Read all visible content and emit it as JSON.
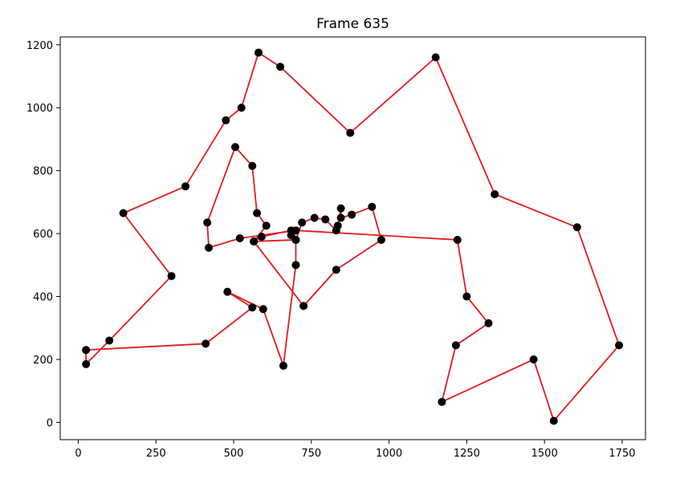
{
  "chart_data": {
    "type": "line",
    "title": "Frame 635",
    "xlabel": "",
    "ylabel": "",
    "xlim": [
      -58,
      1825
    ],
    "ylim": [
      -55,
      1225
    ],
    "xticks": [
      0,
      250,
      500,
      750,
      1000,
      1250,
      1500,
      1750
    ],
    "yticks": [
      0,
      200,
      400,
      600,
      800,
      1000,
      1200
    ],
    "xtick_labels": [
      "0",
      "250",
      "500",
      "750",
      "1000",
      "1250",
      "1500",
      "1750"
    ],
    "ytick_labels": [
      "0",
      "200",
      "400",
      "600",
      "800",
      "1000",
      "1200"
    ],
    "grid": false,
    "line_color": "#e31a1c",
    "marker_color": "#000000",
    "points": [
      [
        580,
        1175
      ],
      [
        650,
        1130
      ],
      [
        875,
        920
      ],
      [
        1150,
        1160
      ],
      [
        1340,
        725
      ],
      [
        1605,
        620
      ],
      [
        1740,
        245
      ],
      [
        1530,
        5
      ],
      [
        1465,
        200
      ],
      [
        1170,
        65
      ],
      [
        1215,
        245
      ],
      [
        1320,
        315
      ],
      [
        1250,
        400
      ],
      [
        1220,
        580
      ],
      [
        700,
        610
      ],
      [
        520,
        585
      ],
      [
        420,
        555
      ],
      [
        415,
        635
      ],
      [
        505,
        875
      ],
      [
        560,
        815
      ],
      [
        575,
        665
      ],
      [
        605,
        625
      ],
      [
        565,
        575
      ],
      [
        725,
        370
      ],
      [
        830,
        485
      ],
      [
        975,
        580
      ],
      [
        945,
        685
      ],
      [
        880,
        660
      ],
      [
        845,
        650
      ],
      [
        845,
        680
      ],
      [
        835,
        625
      ],
      [
        830,
        610
      ],
      [
        795,
        645
      ],
      [
        760,
        650
      ],
      [
        720,
        635
      ],
      [
        700,
        580
      ],
      [
        685,
        595
      ],
      [
        685,
        610
      ],
      [
        590,
        590
      ],
      [
        565,
        575
      ],
      [
        700,
        580
      ],
      [
        700,
        500
      ],
      [
        660,
        180
      ],
      [
        595,
        360
      ],
      [
        480,
        415
      ],
      [
        560,
        365
      ],
      [
        410,
        250
      ],
      [
        25,
        230
      ],
      [
        25,
        185
      ],
      [
        100,
        260
      ],
      [
        300,
        465
      ],
      [
        145,
        665
      ],
      [
        345,
        750
      ],
      [
        475,
        960
      ],
      [
        525,
        1000
      ],
      [
        580,
        1175
      ]
    ]
  }
}
